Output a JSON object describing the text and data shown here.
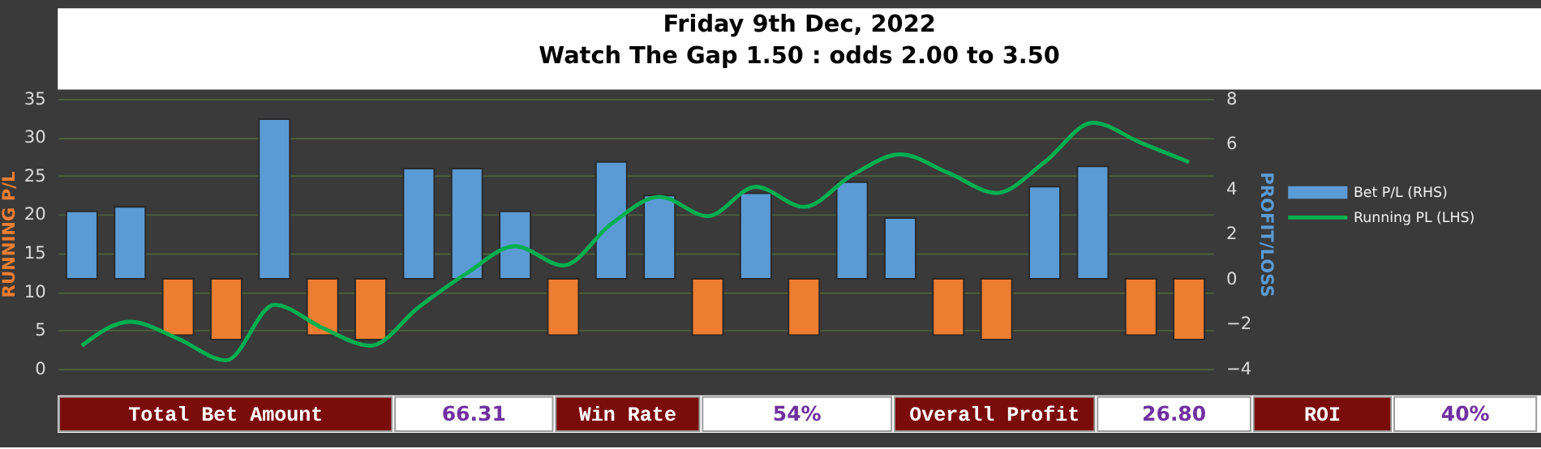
{
  "chart_data": {
    "type": "bar",
    "title": "Friday 9th Dec, 2022",
    "subtitle": "Watch The Gap 1.50 : odds 2.00 to 3.50",
    "categories": [
      null,
      null,
      null,
      null,
      null,
      null,
      null,
      null,
      null,
      null,
      null,
      null,
      null,
      null,
      null,
      null,
      null,
      null,
      null,
      null,
      null,
      null,
      null,
      null
    ],
    "series": [
      {
        "name": "Bet P/L (RHS)",
        "axis": "y2",
        "color": "#5b9bd5",
        "values": [
          3.0,
          3.2,
          -2.5,
          -2.7,
          7.1,
          -2.5,
          -2.7,
          4.9,
          4.9,
          3.0,
          -2.5,
          5.2,
          3.7,
          -2.5,
          3.8,
          -2.5,
          4.3,
          2.7,
          -2.5,
          -2.7,
          4.1,
          5.0,
          -2.5,
          -2.7
        ],
        "colors": [
          "#5b9bd5",
          "#5b9bd5",
          "#ed7d31",
          "#ed7d31",
          "#5b9bd5",
          "#ed7d31",
          "#ed7d31",
          "#5b9bd5",
          "#5b9bd5",
          "#5b9bd5",
          "#ed7d31",
          "#5b9bd5",
          "#5b9bd5",
          "#ed7d31",
          "#5b9bd5",
          "#ed7d31",
          "#5b9bd5",
          "#5b9bd5",
          "#ed7d31",
          "#ed7d31",
          "#5b9bd5",
          "#5b9bd5",
          "#ed7d31",
          "#ed7d31"
        ]
      },
      {
        "name": "Running PL (LHS)",
        "type": "line",
        "axis": "y",
        "color": "#00b050",
        "values": [
          3.0,
          6.1,
          3.9,
          1.1,
          8.3,
          5.3,
          3.0,
          8.0,
          12.4,
          15.9,
          13.4,
          18.8,
          22.3,
          19.8,
          23.6,
          21.0,
          25.1,
          27.8,
          25.4,
          22.8,
          26.8,
          31.9,
          29.3,
          26.8
        ]
      }
    ],
    "ylabel": "RUNNING P/L",
    "y2label": "PROFIT/LOSS",
    "ylim": [
      0,
      35
    ],
    "yticks": [
      0,
      5,
      10,
      15,
      20,
      25,
      30,
      35
    ],
    "y2lim": [
      -4,
      8
    ],
    "y2ticks": [
      -4,
      -2,
      0,
      2,
      4,
      6,
      8
    ],
    "grid": "y",
    "legend": "right",
    "tick_labels": "y",
    "line_style": "solid",
    "annotations": [
      "Total Bet Amount",
      "66.31",
      "Win Rate",
      "54%",
      "Overall Profit",
      "26.80",
      "ROI",
      "40%"
    ]
  }
}
